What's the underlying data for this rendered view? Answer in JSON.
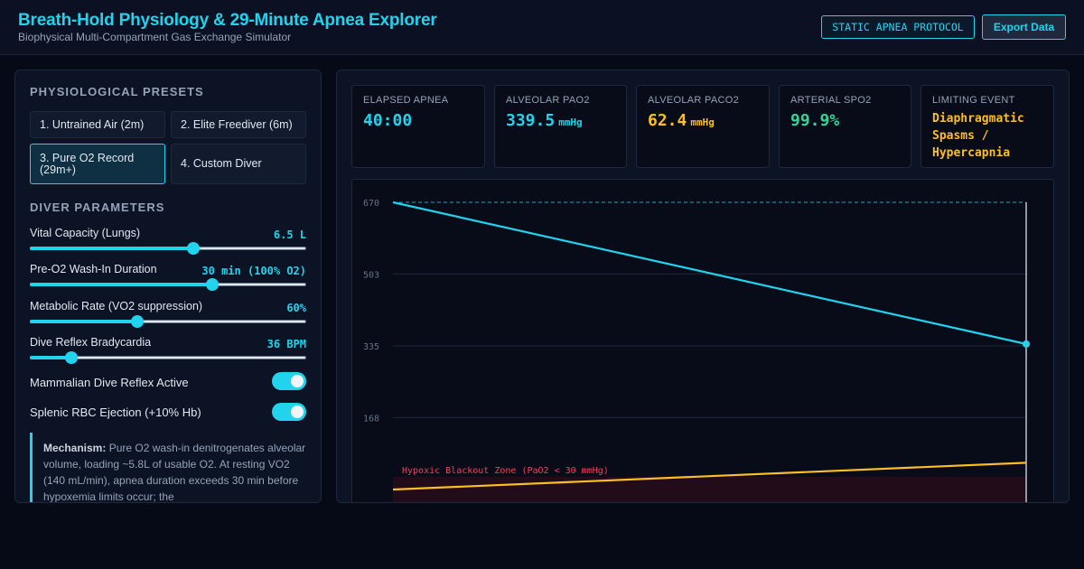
{
  "header": {
    "title": "Breath-Hold Physiology & 29-Minute Apnea Explorer",
    "subtitle": "Biophysical Multi-Compartment Gas Exchange Simulator",
    "protocol_badge": "STATIC APNEA PROTOCOL",
    "export_label": "Export Data"
  },
  "presets": {
    "title": "PHYSIOLOGICAL PRESETS",
    "items": [
      {
        "label": "1. Untrained Air (2m)",
        "active": false
      },
      {
        "label": "2. Elite Freediver (6m)",
        "active": false
      },
      {
        "label": "3. Pure O2 Record (29m+)",
        "active": true
      },
      {
        "label": "4. Custom Diver",
        "active": false
      }
    ]
  },
  "params": {
    "title": "DIVER PARAMETERS",
    "items": [
      {
        "label": "Vital Capacity (Lungs)",
        "value": "6.5 L",
        "level": 0.59
      },
      {
        "label": "Pre-O2 Wash-In Duration",
        "value": "30 min (100% O2)",
        "level": 0.66
      },
      {
        "label": "Metabolic Rate (VO2 suppression)",
        "value": "60%",
        "level": 0.39
      },
      {
        "label": "Dive Reflex Bradycardia",
        "value": "36 BPM",
        "level": 0.15
      }
    ]
  },
  "toggles": [
    {
      "label": "Mammalian Dive Reflex Active",
      "on": true
    },
    {
      "label": "Splenic RBC Ejection (+10% Hb)",
      "on": true
    }
  ],
  "mechanism": {
    "heading": "Mechanism:",
    "text": "Pure O2 wash-in denitrogenates alveolar volume, loading ~5.8L of usable O2. At resting VO2 (140 mL/min), apnea duration exceeds 30 min before hypoxemia limits occur; the"
  },
  "stats": [
    {
      "label": "ELAPSED APNEA",
      "value": "40:00",
      "unit": "",
      "color": "#22d3ee"
    },
    {
      "label": "ALVEOLAR PAO2",
      "value": "339.5",
      "unit": "mmHg",
      "color": "#22d3ee"
    },
    {
      "label": "ALVEOLAR PACO2",
      "value": "62.4",
      "unit": "mmHg",
      "color": "#fbbf24"
    },
    {
      "label": "ARTERIAL SPO2",
      "value": "99.9%",
      "unit": "",
      "color": "#34d399"
    }
  ],
  "limiting_event": {
    "label": "LIMITING EVENT",
    "value": "Diaphragmatic Spasms / Hypercapnia",
    "color": "#fbbf24"
  },
  "chart_data": {
    "type": "line",
    "y_ticks": [
      "670",
      "503",
      "335",
      "168"
    ],
    "ylim": [
      0,
      670
    ],
    "xlim": [
      0,
      40
    ],
    "reference_line": 670,
    "zone_label": "Hypoxic Blackout Zone (PaO2 < 30 mmHg)",
    "zone_threshold": 30,
    "cursor_x": 40,
    "series": [
      {
        "color": "#22d3ee",
        "x": [
          0,
          40
        ],
        "y": [
          670,
          339.5
        ],
        "end_marker": true
      },
      {
        "color": "#fbbf24",
        "x": [
          0,
          40
        ],
        "y": [
          0,
          62.4
        ],
        "end_marker": false
      }
    ]
  }
}
